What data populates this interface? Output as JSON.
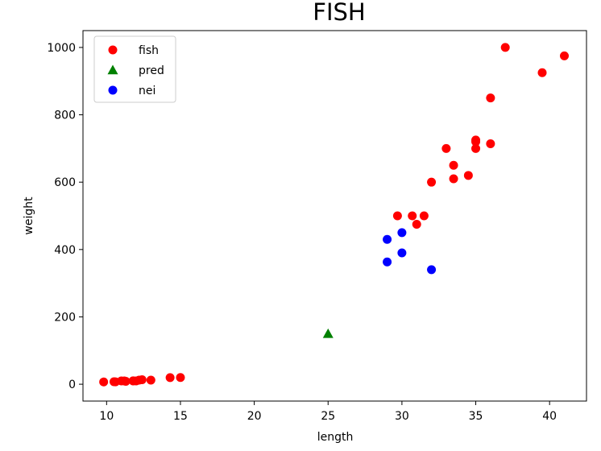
{
  "chart_data": {
    "type": "scatter",
    "title": "FISH",
    "xlabel": "length",
    "ylabel": "weight",
    "xlim": [
      8.4,
      42.5
    ],
    "ylim": [
      -50,
      1050
    ],
    "xticks": [
      10,
      15,
      20,
      25,
      30,
      35,
      40
    ],
    "yticks": [
      0,
      200,
      400,
      600,
      800,
      1000
    ],
    "grid": false,
    "legend_position": "top-left",
    "series": [
      {
        "name": "fish",
        "marker": "circle",
        "color": "#ff0000",
        "points": [
          [
            9.8,
            6.7
          ],
          [
            10.5,
            7.5
          ],
          [
            10.6,
            7.0
          ],
          [
            11.0,
            9.7
          ],
          [
            11.2,
            9.8
          ],
          [
            11.3,
            8.7
          ],
          [
            11.8,
            10.0
          ],
          [
            11.8,
            9.9
          ],
          [
            12.0,
            9.8
          ],
          [
            12.2,
            12.2
          ],
          [
            12.4,
            13.4
          ],
          [
            13.0,
            12.2
          ],
          [
            14.3,
            19.7
          ],
          [
            15.0,
            19.9
          ],
          [
            29.7,
            500.0
          ],
          [
            30.7,
            500.0
          ],
          [
            31.0,
            475.0
          ],
          [
            31.5,
            500.0
          ],
          [
            32.0,
            600.0
          ],
          [
            33.0,
            700.0
          ],
          [
            33.5,
            610.0
          ],
          [
            33.5,
            650.0
          ],
          [
            34.5,
            620.0
          ],
          [
            35.0,
            700.0
          ],
          [
            35.0,
            725.0
          ],
          [
            35.0,
            720.0
          ],
          [
            36.0,
            714.0
          ],
          [
            36.0,
            850.0
          ],
          [
            37.0,
            1000.0
          ],
          [
            39.5,
            925.0
          ],
          [
            41.0,
            975.0
          ]
        ]
      },
      {
        "name": "pred",
        "marker": "triangle",
        "color": "#008000",
        "points": [
          [
            25,
            150
          ]
        ]
      },
      {
        "name": "nei",
        "marker": "circle",
        "color": "#0000ff",
        "points": [
          [
            29.0,
            430.0
          ],
          [
            30.0,
            450.0
          ],
          [
            29.0,
            363.0
          ],
          [
            30.0,
            390.0
          ],
          [
            32.0,
            340.0
          ]
        ]
      }
    ]
  }
}
